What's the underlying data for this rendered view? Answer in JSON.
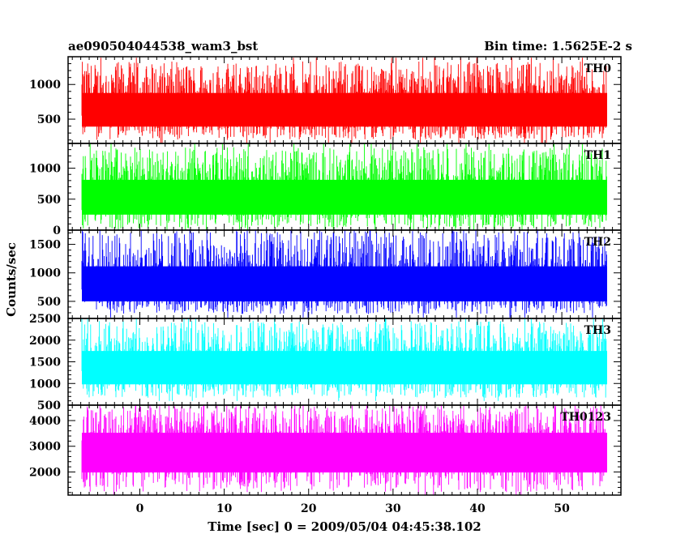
{
  "header": {
    "title": "ae090504044538_wam3_bst",
    "bin_time": "Bin time: 1.5625E-2 s"
  },
  "chart_data": {
    "type": "line",
    "title": "ae090504044538_wam3_bst",
    "xlabel": "Time [sec] 0 = 2009/05/04 04:45:38.102",
    "ylabel": "Counts/sec",
    "xlim": [
      -8.5,
      57
    ],
    "x_range_data": [
      -8,
      56
    ],
    "x_ticks": [
      0,
      10,
      20,
      30,
      40,
      50
    ],
    "x_tick_labels": [
      "0",
      "10",
      "20",
      "30",
      "40",
      "50"
    ],
    "grid": false,
    "panels": [
      {
        "name": "TH0",
        "label": "TH0",
        "color": "#ff0000",
        "ylim": [
          150,
          1400
        ],
        "y_ticks": [
          500,
          1000
        ],
        "y_tick_labels": [
          "500",
          "1000"
        ],
        "typical_min": 220,
        "typical_max": 1300,
        "mean": 650
      },
      {
        "name": "TH1",
        "label": "TH1",
        "color": "#00ff00",
        "ylim": [
          0,
          1400
        ],
        "y_ticks": [
          0,
          500,
          1000
        ],
        "y_tick_labels": [
          "0",
          "500",
          "1000"
        ],
        "typical_min": 50,
        "typical_max": 1300,
        "mean": 550
      },
      {
        "name": "TH2",
        "label": "TH2",
        "color": "#0000ff",
        "ylim": [
          200,
          1750
        ],
        "y_ticks": [
          500,
          1000,
          1500
        ],
        "y_tick_labels": [
          "500",
          "1000",
          "1500"
        ],
        "typical_min": 300,
        "typical_max": 1700,
        "mean": 800
      },
      {
        "name": "TH3",
        "label": "TH3",
        "color": "#00ffff",
        "ylim": [
          500,
          2500
        ],
        "y_ticks": [
          500,
          1000,
          1500,
          2000,
          2500
        ],
        "y_tick_labels": [
          "500",
          "1000",
          "1500",
          "2000",
          "2500"
        ],
        "typical_min": 700,
        "typical_max": 2400,
        "mean": 1400
      },
      {
        "name": "TH0123",
        "label": "TH0123",
        "color": "#ff00ff",
        "ylim": [
          1100,
          4600
        ],
        "y_ticks": [
          2000,
          3000,
          4000
        ],
        "y_tick_labels": [
          "2000",
          "3000",
          "4000"
        ],
        "typical_min": 1300,
        "typical_max": 4500,
        "mean": 3000
      }
    ]
  }
}
